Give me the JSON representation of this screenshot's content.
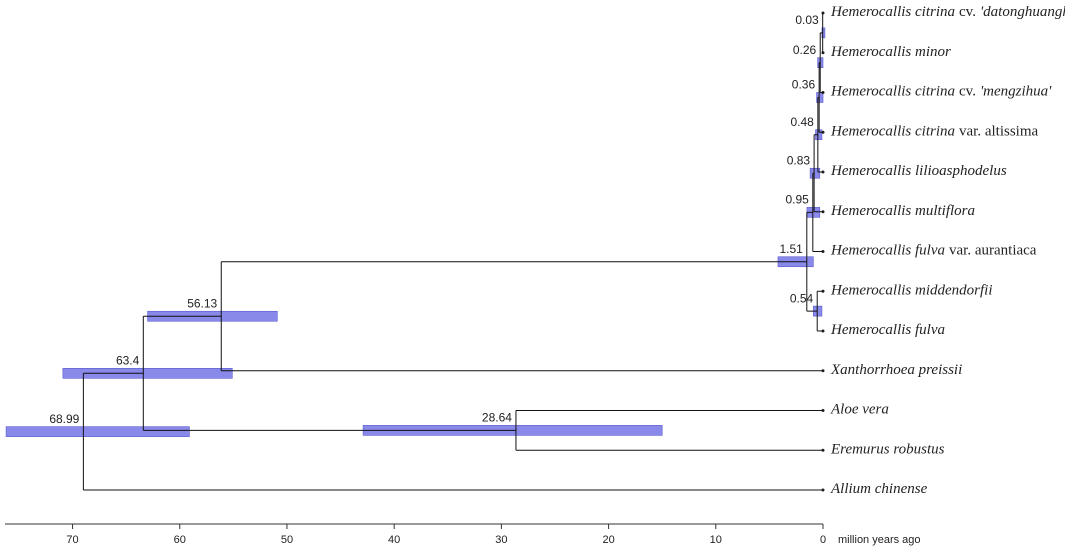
{
  "chart_data": {
    "type": "tree",
    "axis_label": "million years ago",
    "xlim": [
      76.3,
      0
    ],
    "xticks": [
      70,
      60,
      50,
      40,
      30,
      20,
      10,
      0
    ],
    "bar_color": "#7474e6",
    "tree": {
      "age": 68.99,
      "hpd": [
        59.1,
        76.2
      ],
      "children": [
        {
          "age": 63.4,
          "hpd": [
            55.1,
            70.9
          ],
          "children": [
            {
              "age": 56.13,
              "hpd": [
                50.9,
                63.0
              ],
              "children": [
                {
                  "age": 1.51,
                  "hpd": [
                    0.9,
                    4.2
                  ],
                  "children": [
                    {
                      "age": 0.95,
                      "hpd": [
                        0.3,
                        1.5
                      ],
                      "children": [
                        {
                          "age": 0.83,
                          "hpd": [
                            0.3,
                            1.2
                          ],
                          "children": [
                            {
                              "age": 0.48,
                              "hpd": [
                                0.1,
                                0.7
                              ],
                              "children": [
                                {
                                  "age": 0.36,
                                  "hpd": [
                                    0,
                                    0.6
                                  ],
                                  "children": [
                                    {
                                      "age": 0.26,
                                      "hpd": [
                                        0,
                                        0.5
                                      ],
                                      "children": [
                                        {
                                          "age": 0.03,
                                          "hpd": [
                                            0,
                                            0.1
                                          ],
                                          "children": [
                                            {
                                              "name": "Hemerocallis citrina",
                                              "qualifier": "cv.",
                                              "cultivar": "'datonghuanghua'"
                                            },
                                            {
                                              "name": "Hemerocallis minor"
                                            }
                                          ]
                                        },
                                        {
                                          "name": "Hemerocallis citrina",
                                          "qualifier": "cv.",
                                          "cultivar": "'mengzihua'"
                                        }
                                      ]
                                    },
                                    {
                                      "name": "Hemerocallis citrina",
                                      "qualifier": "var. altissima"
                                    }
                                  ]
                                },
                                {
                                  "name": "Hemerocallis lilioasphodelus"
                                }
                              ]
                            },
                            {
                              "name": "Hemerocallis multiflora"
                            }
                          ]
                        },
                        {
                          "name": "Hemerocallis fulva",
                          "qualifier": "var. aurantiaca"
                        }
                      ]
                    },
                    {
                      "age": 0.54,
                      "hpd": [
                        0.1,
                        0.9
                      ],
                      "children": [
                        {
                          "name": "Hemerocallis middendorfii"
                        },
                        {
                          "name": "Hemerocallis fulva"
                        }
                      ]
                    }
                  ]
                },
                {
                  "name": "Xanthorrhoea preissii"
                }
              ]
            },
            {
              "age": 28.64,
              "hpd": [
                15.0,
                42.9
              ],
              "children": [
                {
                  "name": "Aloe vera"
                },
                {
                  "name": "Eremurus robustus"
                }
              ]
            }
          ]
        },
        {
          "name": "Allium chinense"
        }
      ]
    }
  }
}
